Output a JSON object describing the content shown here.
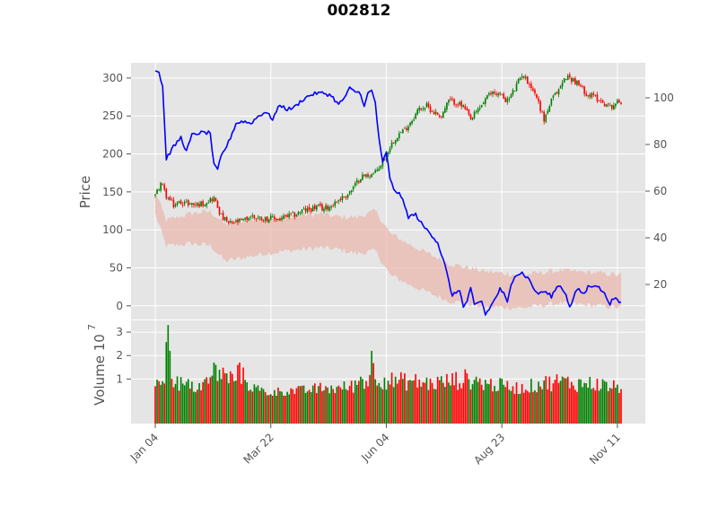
{
  "chart_data": {
    "type": "candlestick",
    "title": "002812",
    "colors": {
      "up": "#008000",
      "down": "#ff0000",
      "line": "#0000ff",
      "band": "#e8b8ad",
      "background": "#e5e5e5",
      "grid": "#ffffff"
    },
    "grid": true,
    "x_ticks": [
      "Jan 04",
      "Mar 22",
      "Jun 04",
      "Aug 23",
      "Nov 11"
    ],
    "price_panel": {
      "ylabel": "Price",
      "yticks": [
        0,
        50,
        100,
        150,
        200,
        250,
        300
      ],
      "ylim": [
        -18,
        320
      ],
      "right_yticks": [
        20,
        40,
        60,
        80,
        100
      ],
      "right_ylim": [
        5,
        115
      ],
      "close_keypoints": [
        [
          0,
          145
        ],
        [
          3,
          162
        ],
        [
          6,
          145
        ],
        [
          10,
          132
        ],
        [
          14,
          137
        ],
        [
          18,
          135
        ],
        [
          22,
          133
        ],
        [
          26,
          135
        ],
        [
          30,
          140
        ],
        [
          32,
          142
        ],
        [
          36,
          118
        ],
        [
          40,
          108
        ],
        [
          44,
          110
        ],
        [
          48,
          112
        ],
        [
          52,
          118
        ],
        [
          56,
          116
        ],
        [
          60,
          115
        ],
        [
          64,
          115
        ],
        [
          68,
          114
        ],
        [
          72,
          118
        ],
        [
          76,
          120
        ],
        [
          80,
          125
        ],
        [
          84,
          127
        ],
        [
          88,
          130
        ],
        [
          92,
          128
        ],
        [
          96,
          132
        ],
        [
          100,
          140
        ],
        [
          104,
          145
        ],
        [
          108,
          155
        ],
        [
          112,
          170
        ],
        [
          116,
          172
        ],
        [
          120,
          175
        ],
        [
          124,
          190
        ],
        [
          128,
          210
        ],
        [
          132,
          225
        ],
        [
          136,
          232
        ],
        [
          140,
          245
        ],
        [
          144,
          260
        ],
        [
          148,
          263
        ],
        [
          152,
          255
        ],
        [
          156,
          250
        ],
        [
          160,
          270
        ],
        [
          164,
          268
        ],
        [
          168,
          262
        ],
        [
          172,
          245
        ],
        [
          176,
          258
        ],
        [
          180,
          272
        ],
        [
          184,
          282
        ],
        [
          188,
          278
        ],
        [
          192,
          270
        ],
        [
          196,
          285
        ],
        [
          200,
          305
        ],
        [
          204,
          293
        ],
        [
          208,
          275
        ],
        [
          212,
          245
        ],
        [
          216,
          270
        ],
        [
          220,
          285
        ],
        [
          224,
          302
        ],
        [
          228,
          298
        ],
        [
          232,
          288
        ],
        [
          236,
          278
        ],
        [
          240,
          275
        ],
        [
          244,
          268
        ],
        [
          248,
          262
        ],
        [
          252,
          268
        ],
        [
          254,
          268
        ]
      ],
      "line_keypoints": [
        [
          0,
          112
        ],
        [
          2,
          111
        ],
        [
          4,
          105
        ],
        [
          6,
          74
        ],
        [
          10,
          79
        ],
        [
          14,
          83
        ],
        [
          17,
          77
        ],
        [
          20,
          84
        ],
        [
          24,
          85
        ],
        [
          28,
          85
        ],
        [
          30,
          85
        ],
        [
          32,
          71
        ],
        [
          34,
          69
        ],
        [
          36,
          75
        ],
        [
          40,
          81
        ],
        [
          44,
          89
        ],
        [
          48,
          90
        ],
        [
          52,
          89
        ],
        [
          56,
          92
        ],
        [
          60,
          94
        ],
        [
          64,
          91
        ],
        [
          68,
          97
        ],
        [
          72,
          95
        ],
        [
          76,
          96
        ],
        [
          80,
          99
        ],
        [
          84,
          101
        ],
        [
          88,
          102
        ],
        [
          92,
          102
        ],
        [
          96,
          101
        ],
        [
          100,
          97
        ],
        [
          104,
          101
        ],
        [
          106,
          104
        ],
        [
          108,
          103
        ],
        [
          112,
          102
        ],
        [
          114,
          96
        ],
        [
          116,
          102
        ],
        [
          118,
          103
        ],
        [
          120,
          98
        ],
        [
          122,
          82
        ],
        [
          124,
          72
        ],
        [
          126,
          77
        ],
        [
          128,
          65
        ],
        [
          130,
          61
        ],
        [
          134,
          58
        ],
        [
          138,
          49
        ],
        [
          142,
          50
        ],
        [
          146,
          45
        ],
        [
          150,
          42
        ],
        [
          154,
          38
        ],
        [
          158,
          28
        ],
        [
          162,
          15
        ],
        [
          166,
          18
        ],
        [
          168,
          10
        ],
        [
          170,
          13
        ],
        [
          172,
          18
        ],
        [
          174,
          11
        ],
        [
          178,
          13
        ],
        [
          180,
          7
        ],
        [
          184,
          12
        ],
        [
          188,
          18
        ],
        [
          190,
          16
        ],
        [
          192,
          12
        ],
        [
          194,
          20
        ],
        [
          196,
          24
        ],
        [
          200,
          25
        ],
        [
          204,
          22
        ],
        [
          208,
          16
        ],
        [
          212,
          17
        ],
        [
          216,
          15
        ],
        [
          220,
          20
        ],
        [
          224,
          16
        ],
        [
          226,
          10
        ],
        [
          230,
          18
        ],
        [
          234,
          16
        ],
        [
          236,
          19
        ],
        [
          240,
          20
        ],
        [
          244,
          17
        ],
        [
          248,
          12
        ],
        [
          250,
          14
        ],
        [
          254,
          12
        ]
      ],
      "band_center_keypoints": [
        [
          0,
          55
        ],
        [
          6,
          42
        ],
        [
          20,
          44
        ],
        [
          30,
          44
        ],
        [
          38,
          38
        ],
        [
          60,
          41
        ],
        [
          90,
          43
        ],
        [
          110,
          41
        ],
        [
          120,
          43
        ],
        [
          128,
          33
        ],
        [
          140,
          28
        ],
        [
          160,
          21
        ],
        [
          180,
          18
        ],
        [
          200,
          17
        ],
        [
          220,
          19
        ],
        [
          240,
          18
        ],
        [
          254,
          17
        ]
      ],
      "band_halfwidth_keypoints": [
        [
          0,
          5
        ],
        [
          40,
          8
        ],
        [
          100,
          7
        ],
        [
          126,
          9
        ],
        [
          160,
          8
        ],
        [
          200,
          7
        ],
        [
          254,
          7
        ]
      ]
    },
    "volume_panel": {
      "ylabel": "Volume  10",
      "exponent": "7",
      "yticks": [
        1,
        2,
        3
      ],
      "ylim": [
        -0.9,
        3.5
      ],
      "volume_keypoints": [
        [
          0,
          1.0
        ],
        [
          5,
          1.2
        ],
        [
          7,
          3.0
        ],
        [
          8,
          2.0
        ],
        [
          10,
          1.0
        ],
        [
          14,
          0.8
        ],
        [
          18,
          0.6
        ],
        [
          24,
          0.7
        ],
        [
          30,
          0.9
        ],
        [
          34,
          1.3
        ],
        [
          38,
          1.1
        ],
        [
          42,
          1.0
        ],
        [
          46,
          1.2
        ],
        [
          50,
          0.9
        ],
        [
          54,
          0.6
        ],
        [
          58,
          0.5
        ],
        [
          62,
          0.4
        ],
        [
          70,
          0.5
        ],
        [
          80,
          0.5
        ],
        [
          90,
          0.6
        ],
        [
          100,
          0.6
        ],
        [
          108,
          0.7
        ],
        [
          112,
          1.0
        ],
        [
          116,
          0.9
        ],
        [
          118,
          2.0
        ],
        [
          120,
          1.2
        ],
        [
          124,
          1.0
        ],
        [
          130,
          0.9
        ],
        [
          140,
          0.9
        ],
        [
          150,
          0.8
        ],
        [
          160,
          0.9
        ],
        [
          170,
          1.0
        ],
        [
          176,
          0.9
        ],
        [
          180,
          0.8
        ],
        [
          190,
          0.7
        ],
        [
          200,
          0.6
        ],
        [
          210,
          0.8
        ],
        [
          220,
          0.9
        ],
        [
          230,
          0.8
        ],
        [
          240,
          0.8
        ],
        [
          254,
          0.6
        ]
      ],
      "spikes": [
        [
          7,
          3.3
        ],
        [
          8,
          2.2
        ],
        [
          118,
          2.2
        ],
        [
          46,
          1.7
        ],
        [
          32,
          1.7
        ],
        [
          18,
          1.0
        ]
      ]
    }
  }
}
